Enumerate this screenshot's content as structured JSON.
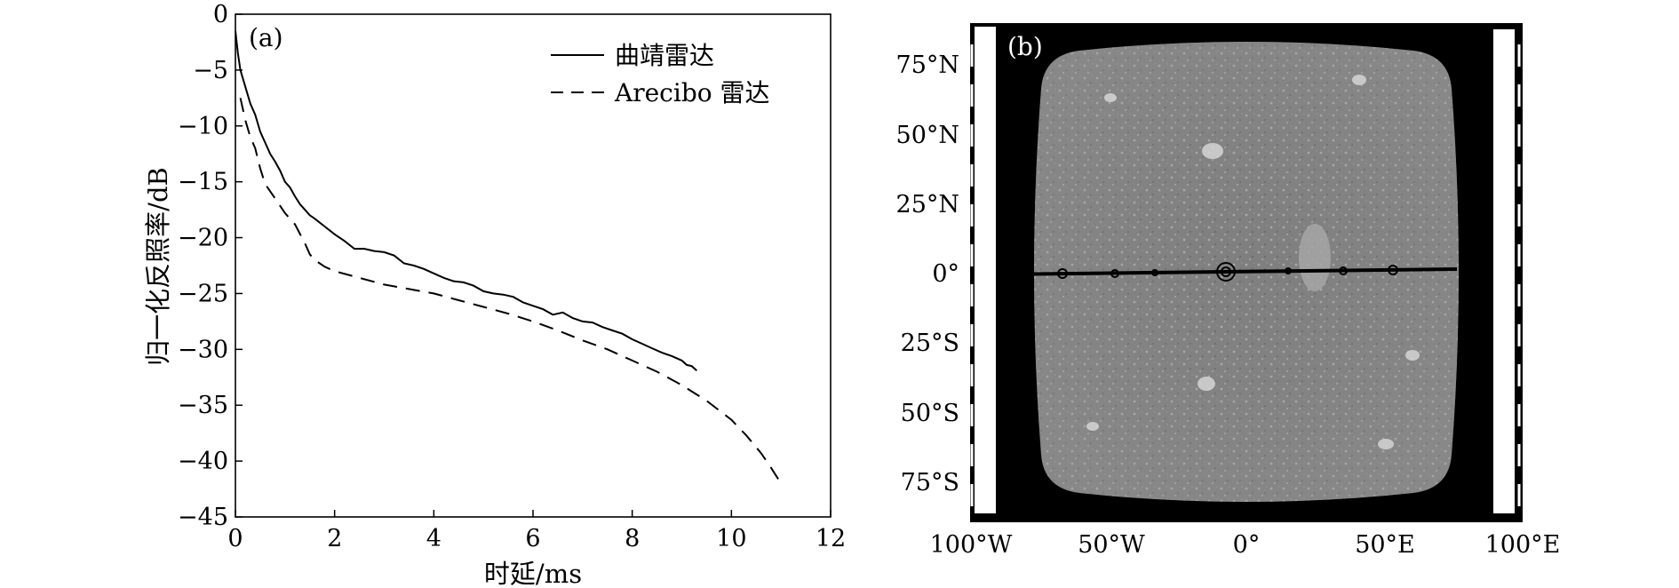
{
  "figure": {
    "panel_a_label": "(a)",
    "panel_b_label": "(b)"
  },
  "chart_data": [
    {
      "type": "line",
      "panel": "(a)",
      "xlabel": "时延/ms",
      "ylabel": "归一化反照率/dB",
      "xlim": [
        0,
        12
      ],
      "ylim": [
        -45,
        0
      ],
      "xticks": [
        0,
        2,
        4,
        6,
        8,
        10,
        12
      ],
      "xtick_labels": [
        "0",
        "2",
        "4",
        "6",
        "8",
        "10",
        "12"
      ],
      "yticks": [
        0,
        -5,
        -10,
        -15,
        -20,
        -25,
        -30,
        -35,
        -40,
        -45
      ],
      "ytick_labels": [
        "0",
        "−5",
        "−10",
        "−15",
        "−20",
        "−25",
        "−30",
        "−35",
        "−40",
        "−45"
      ],
      "legend_position": "top-right",
      "series": [
        {
          "name": "曲靖雷达",
          "style": "solid",
          "color": "#000000",
          "x": [
            0,
            0.05,
            0.1,
            0.2,
            0.3,
            0.4,
            0.5,
            0.6,
            0.7,
            0.8,
            0.9,
            1.0,
            1.1,
            1.2,
            1.3,
            1.4,
            1.5,
            1.6,
            1.8,
            2.0,
            2.2,
            2.4,
            2.6,
            2.8,
            3.0,
            3.2,
            3.4,
            3.6,
            3.8,
            4.0,
            4.2,
            4.4,
            4.6,
            4.8,
            5.0,
            5.2,
            5.4,
            5.6,
            5.8,
            6.0,
            6.2,
            6.4,
            6.6,
            6.8,
            7.0,
            7.2,
            7.4,
            7.6,
            7.8,
            8.0,
            8.2,
            8.4,
            8.6,
            8.8,
            9.0,
            9.1,
            9.2,
            9.3
          ],
          "y": [
            -1.5,
            -3.5,
            -5,
            -6.5,
            -8,
            -9,
            -10.5,
            -11.5,
            -12.5,
            -13.2,
            -14,
            -15,
            -15.5,
            -16.3,
            -17,
            -17.5,
            -18,
            -18.3,
            -19,
            -19.7,
            -20.3,
            -21,
            -21,
            -21.2,
            -21.3,
            -21.6,
            -22.3,
            -22.5,
            -22.8,
            -23.2,
            -23.6,
            -23.9,
            -24,
            -24.3,
            -24.8,
            -25,
            -25.1,
            -25.3,
            -25.8,
            -26.1,
            -26.4,
            -26.9,
            -26.7,
            -27.2,
            -27.5,
            -27.6,
            -28,
            -28.3,
            -28.6,
            -29.1,
            -29.5,
            -29.9,
            -30.3,
            -30.6,
            -31,
            -31.4,
            -31.5,
            -31.9
          ]
        },
        {
          "name": "Arecibo 雷达",
          "style": "dashed",
          "color": "#000000",
          "x": [
            0.1,
            0.2,
            0.3,
            0.4,
            0.5,
            0.6,
            0.8,
            1.0,
            1.2,
            1.4,
            1.5,
            1.6,
            1.8,
            2.0,
            2.5,
            3.0,
            3.5,
            4.0,
            4.5,
            5.0,
            5.5,
            6.0,
            6.5,
            7.0,
            7.5,
            8.0,
            8.5,
            9.0,
            9.5,
            10.0,
            10.3,
            10.6,
            10.8,
            11.0
          ],
          "y": [
            -7.5,
            -9.5,
            -11,
            -12,
            -13.8,
            -15.2,
            -16.5,
            -17.8,
            -18.8,
            -20.5,
            -21.5,
            -22,
            -22.6,
            -23,
            -23.6,
            -24.2,
            -24.6,
            -25,
            -25.6,
            -26.2,
            -26.8,
            -27.5,
            -28.3,
            -29.2,
            -30,
            -31,
            -32,
            -33.2,
            -34.6,
            -36.3,
            -37.7,
            -39.3,
            -40.6,
            -42
          ]
        }
      ]
    },
    {
      "type": "heatmap",
      "panel": "(b)",
      "description_visible": "grayscale radar map",
      "x_tick_labels": [
        "100°W",
        "50°W",
        "0°",
        "50°E",
        "100°E"
      ],
      "y_tick_labels": [
        "75°N",
        "50°N",
        "25°N",
        "0°",
        "25°S",
        "50°S",
        "75°S"
      ],
      "colors": {
        "background": "#000000",
        "map_gray": "#8a8a8a"
      }
    }
  ]
}
